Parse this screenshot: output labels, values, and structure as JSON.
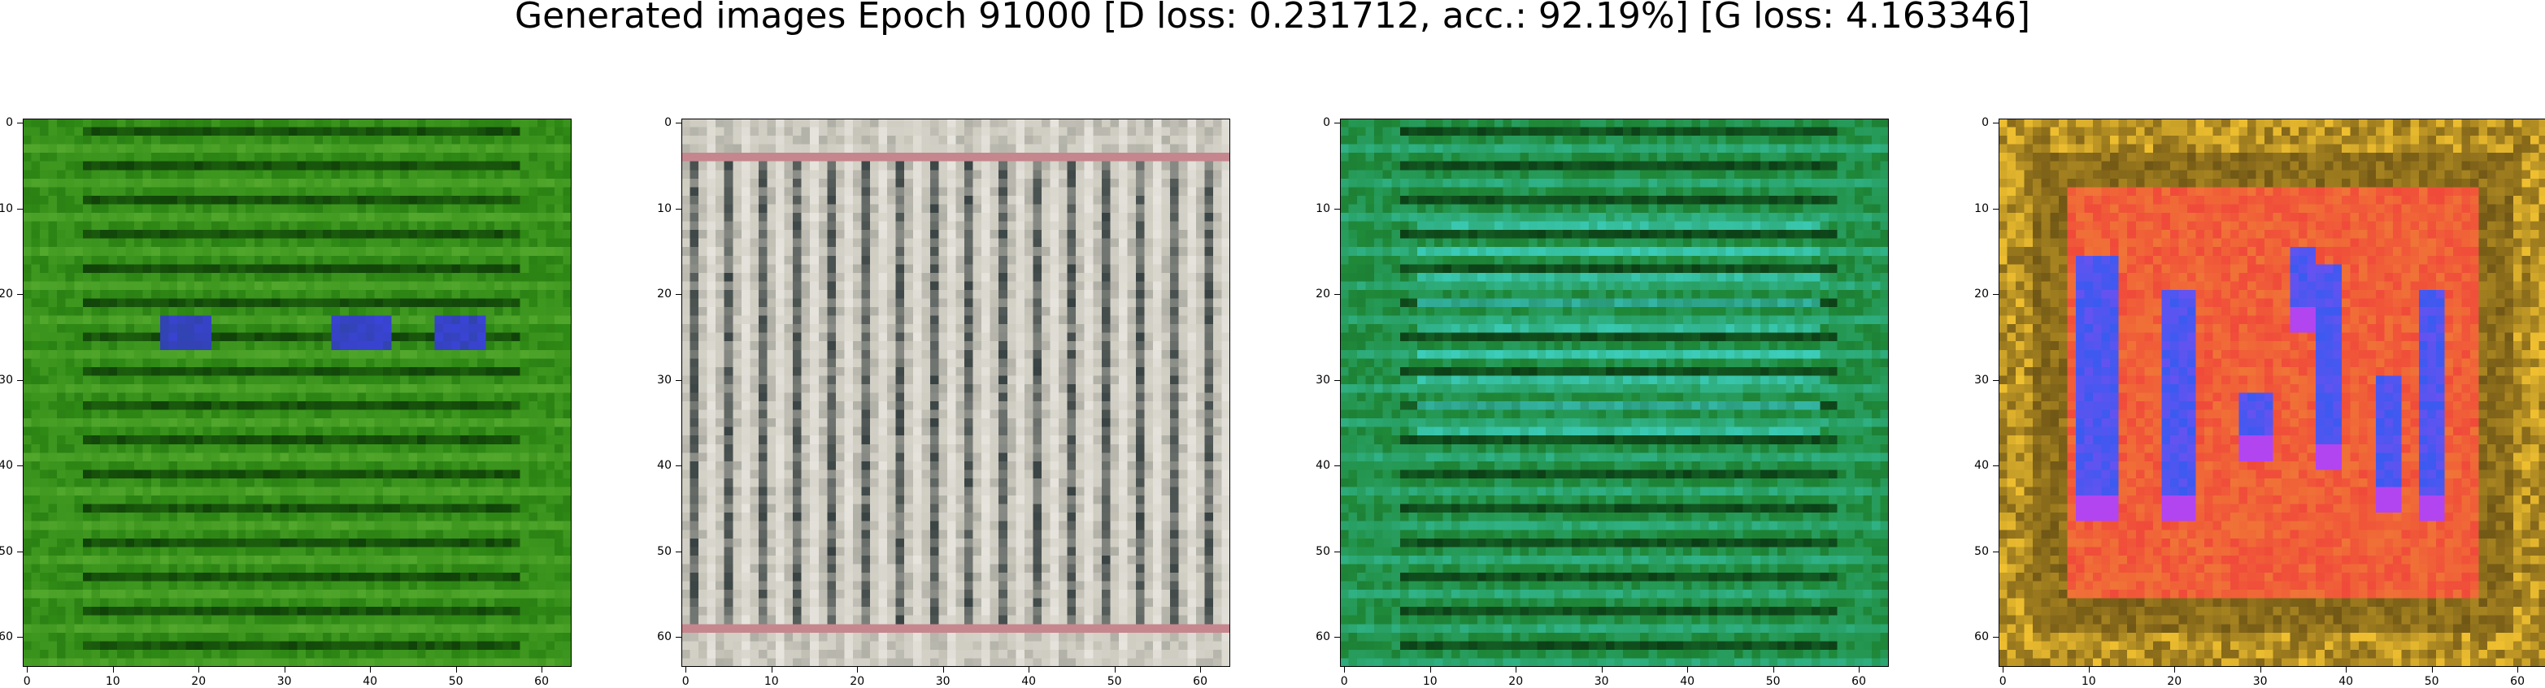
{
  "figure": {
    "title": "Generated images Epoch 91000 [D loss: 0.231712, acc.: 92.19%] [G loss: 4.163346]"
  },
  "axes": {
    "x_ticks": [
      "0",
      "10",
      "20",
      "30",
      "40",
      "50",
      "60"
    ],
    "y_ticks": [
      "0",
      "10",
      "20",
      "30",
      "40",
      "50",
      "60"
    ],
    "range": [
      0,
      64
    ]
  },
  "panels": [
    {
      "name": "green-stripes",
      "base": "#2f8a15",
      "dark": "#0e3d08",
      "light": "#6fc040",
      "accent": "#3a44d8",
      "stripes": "horizontal"
    },
    {
      "name": "gray-grid",
      "base": "#c9c6bb",
      "dark": "#1e2a2c",
      "light": "#eeece6",
      "accent": "#c56a7a",
      "stripes": "vertical"
    },
    {
      "name": "teal-stripes",
      "base": "#1f8a3a",
      "dark": "#0b3a14",
      "light": "#3fd4c8",
      "accent": "#1fb0b4",
      "stripes": "horizontal"
    },
    {
      "name": "red-blue-glyphs",
      "base": "#f04a3a",
      "dark": "#3a2a0a",
      "light": "#f0c030",
      "accent": "#3a5af0",
      "stripes": "blocks"
    }
  ]
}
